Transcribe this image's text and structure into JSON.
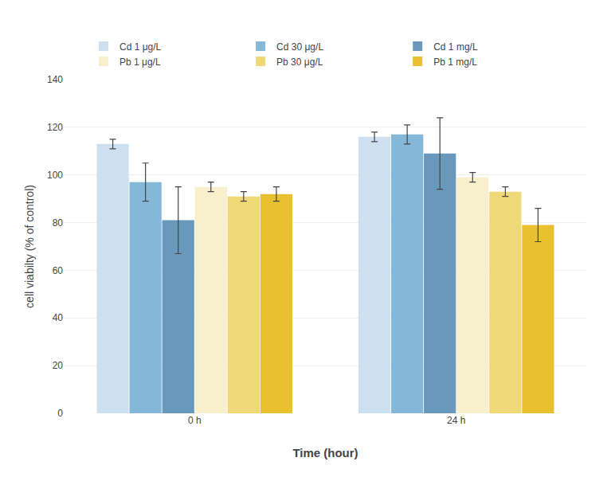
{
  "chart_data": {
    "type": "bar",
    "categories": [
      "0 h",
      "24 h"
    ],
    "series": [
      {
        "name": "Cd 1 μg/L",
        "color": "#cce0f0",
        "values": [
          113,
          116
        ],
        "errors": [
          2,
          2
        ]
      },
      {
        "name": "Cd 30 μg/L",
        "color": "#85b8d8",
        "values": [
          97,
          117
        ],
        "errors": [
          8,
          4
        ]
      },
      {
        "name": "Cd 1 mg/L",
        "color": "#6899bc",
        "values": [
          81,
          109
        ],
        "errors": [
          14,
          15
        ]
      },
      {
        "name": "Pb 1 μg/L",
        "color": "#f8f0cc",
        "values": [
          95,
          99
        ],
        "errors": [
          2,
          2
        ]
      },
      {
        "name": "Pb 30 μg/L",
        "color": "#f0d878",
        "values": [
          91,
          93
        ],
        "errors": [
          2,
          2
        ]
      },
      {
        "name": "Pb 1 mg/L",
        "color": "#e8c030",
        "values": [
          92,
          79
        ],
        "errors": [
          3,
          7
        ]
      }
    ],
    "xlabel": "Time (hour)",
    "ylabel": "cell viabilty (% of control)",
    "ylim": [
      0,
      140
    ],
    "yticks": [
      0,
      20,
      40,
      60,
      80,
      100,
      120,
      140
    ],
    "grid": true,
    "legend": "top"
  }
}
